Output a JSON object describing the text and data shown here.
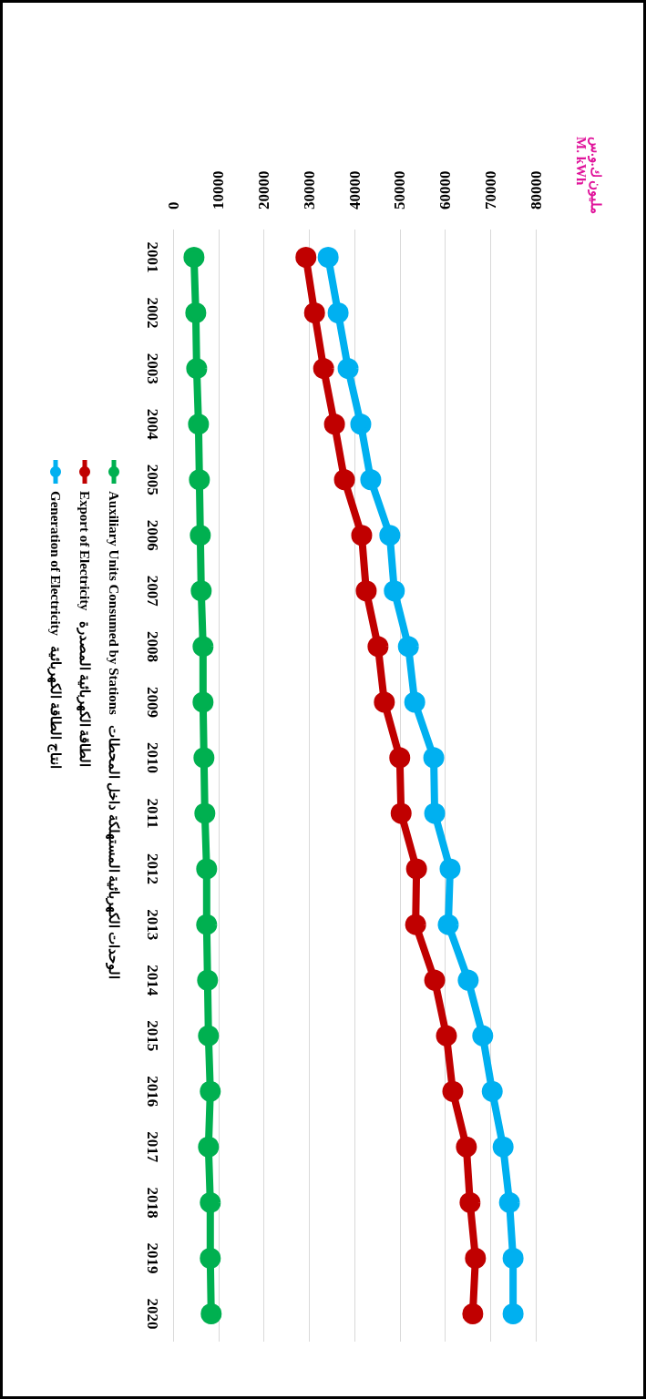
{
  "chart_data": {
    "type": "line",
    "orientation": "horizontal",
    "annotations": [
      "مليون ك.و.س\nM. kWh"
    ],
    "categories": [
      "2001",
      "2002",
      "2003",
      "2004",
      "2005",
      "2006",
      "2007",
      "2008",
      "2009",
      "2010",
      "2011",
      "2012",
      "2013",
      "2014",
      "2015",
      "2016",
      "2017",
      "2018",
      "2019",
      "2020"
    ],
    "series": [
      {
        "name": "Auxiliary Units Consumed by Stations   الوحدات الكهربائية المستهلكة داخل المحطات",
        "color": "#00b050",
        "values": [
          4600,
          5000,
          5200,
          5600,
          5800,
          6000,
          6200,
          6600,
          6600,
          6800,
          7000,
          7400,
          7400,
          7600,
          7800,
          8200,
          7800,
          8200,
          8200,
          8400
        ]
      },
      {
        "name": "Export of Electricity   الطاقة الكهربائية المصدرة",
        "color": "#c00000",
        "values": [
          29300,
          31200,
          33200,
          35600,
          37800,
          41600,
          42600,
          45200,
          46600,
          50000,
          50300,
          53700,
          53500,
          57700,
          60300,
          61700,
          64700,
          65500,
          66700,
          66100
        ]
      },
      {
        "name": "Generation of Electricity   انتاج الطاقة الكهربائية",
        "color": "#00b0f0",
        "values": [
          34200,
          36400,
          38600,
          41400,
          43600,
          47800,
          48800,
          51900,
          53300,
          57500,
          57700,
          61100,
          60700,
          65100,
          68300,
          70400,
          72800,
          74200,
          75000,
          75000
        ]
      }
    ],
    "xlim": [
      0,
      80000
    ],
    "xticks": [
      0,
      10000,
      20000,
      30000,
      40000,
      50000,
      60000,
      70000,
      80000
    ],
    "grid": "x",
    "legend": "left",
    "marker": "circle",
    "line_style": "solid"
  }
}
